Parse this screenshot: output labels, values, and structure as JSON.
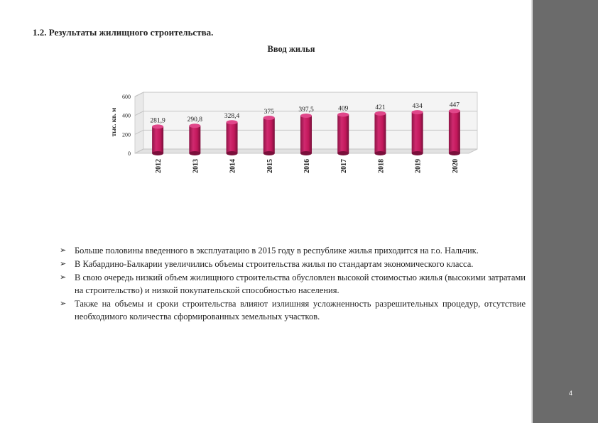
{
  "page": {
    "section_title": "1.2. Результаты жилищного строительства.",
    "chart_title": "Ввод жилья",
    "page_number": "4"
  },
  "chart_data": {
    "type": "bar",
    "title": "Ввод жилья",
    "ylabel": "тыс. кв. м",
    "xlabel": "",
    "ylim": [
      0,
      600
    ],
    "yticks": [
      0,
      200,
      400,
      600
    ],
    "categories": [
      "2012",
      "2013",
      "2014",
      "2015",
      "2016",
      "2017",
      "2018",
      "2019",
      "2020"
    ],
    "values": [
      281.9,
      290.8,
      328.4,
      375,
      397.5,
      409,
      421,
      434,
      447
    ],
    "value_labels": [
      "281,9",
      "290,8",
      "328,4",
      "375",
      "397,5",
      "409",
      "421",
      "434",
      "447"
    ],
    "grid": true,
    "bar_color": "#c2185b"
  },
  "bullets": [
    "Больше половины введенного в эксплуатацию в 2015 году в республике жилья приходится на г.о. Нальчик.",
    "В Кабардино-Балкарии увеличились объемы строительства жилья по стандартам экономического класса.",
    "В свою очередь низкий объем жилищного строительства обусловлен высокой стоимостью жилья (высокими затратами на строительство) и низкой покупательской способностью населения.",
    "Также на объемы и сроки строительства влияют излишняя усложненность разрешительных процедур, отсутствие необходимого количества сформированных земельных участков."
  ],
  "bullet_icon": "arrow-bullet-icon"
}
